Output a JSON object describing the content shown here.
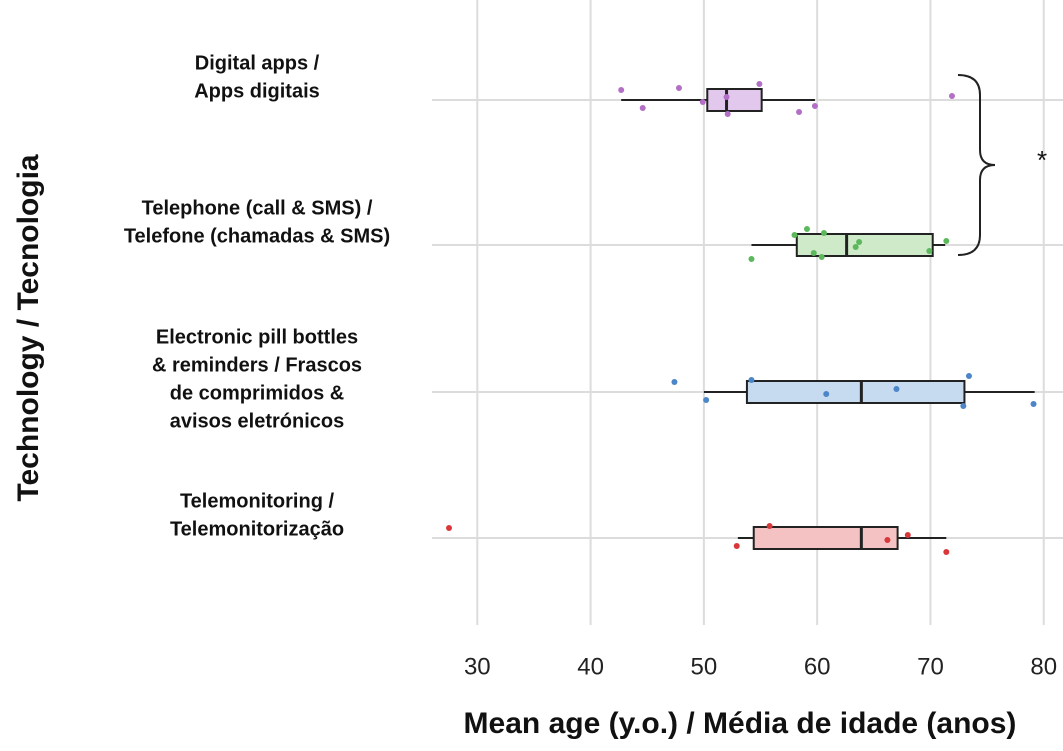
{
  "chart_data": {
    "type": "boxplot",
    "orientation": "horizontal",
    "x_label": "Mean age (y.o.) / Média de idade (anos)",
    "y_label": "Technology / Tecnologia",
    "categories": [
      [
        "Digital apps /",
        "Apps digitais"
      ],
      [
        "Telephone (call & SMS) /",
        "Telefone (chamadas & SMS)"
      ],
      [
        "Electronic pill bottles",
        "& reminders / Frascos",
        "de comprimidos &",
        "avisos eletrónicos"
      ],
      [
        "Telemonitoring /",
        "Telemonitorização"
      ]
    ],
    "xlim": [
      26,
      81.7
    ],
    "xticks": [
      30,
      40,
      50,
      60,
      70,
      80
    ],
    "grid": true,
    "series": [
      {
        "color": "#e2c8ec",
        "point_color": "#b36fc6",
        "min": 42.7,
        "q1": 50.3,
        "median": 52,
        "q3": 55.1,
        "max": 59.8,
        "points": [
          42.7,
          44.6,
          47.8,
          49.9,
          52,
          52.1,
          54.9,
          58.4,
          59.8,
          71.9
        ]
      },
      {
        "color": "#cfeac8",
        "point_color": "#5cb85c",
        "min": 54.2,
        "q1": 58.2,
        "median": 62.6,
        "q3": 70.2,
        "max": 71.3,
        "points": [
          58,
          59.7,
          60.6,
          63.4,
          63.7,
          54.2,
          59.1,
          60.4,
          69.9,
          71.4
        ]
      },
      {
        "color": "#c6dbf0",
        "point_color": "#4a86c8",
        "min": 50,
        "q1": 53.8,
        "median": 63.9,
        "q3": 73,
        "max": 79.2,
        "points": [
          47.4,
          50.2,
          54.2,
          60.8,
          67,
          72.9,
          73.4,
          79.1
        ]
      },
      {
        "color": "#f4c2c2",
        "point_color": "#d9383a",
        "min": 53,
        "q1": 54.4,
        "median": 63.9,
        "q3": 67.1,
        "max": 71.4,
        "points": [
          27.5,
          52.9,
          55.8,
          66.2,
          68,
          71.4
        ]
      }
    ],
    "annotation": "*"
  }
}
